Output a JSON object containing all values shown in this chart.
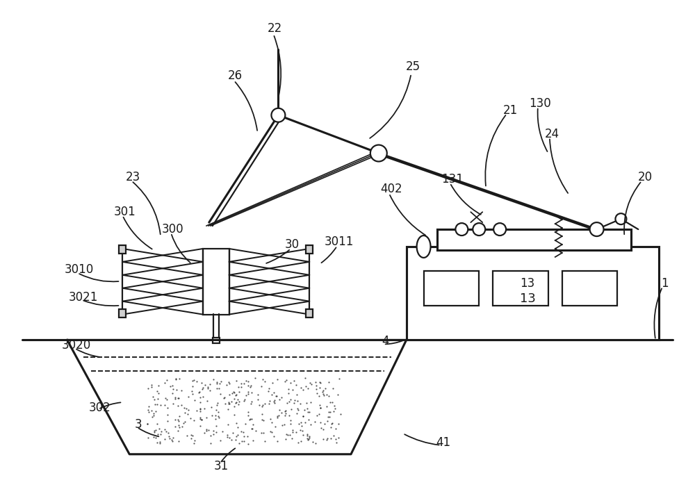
{
  "bg_color": "#ffffff",
  "line_color": "#1a1a1a",
  "lw": 1.6,
  "fig_w": 10.0,
  "fig_h": 7.01,
  "dpi": 100
}
